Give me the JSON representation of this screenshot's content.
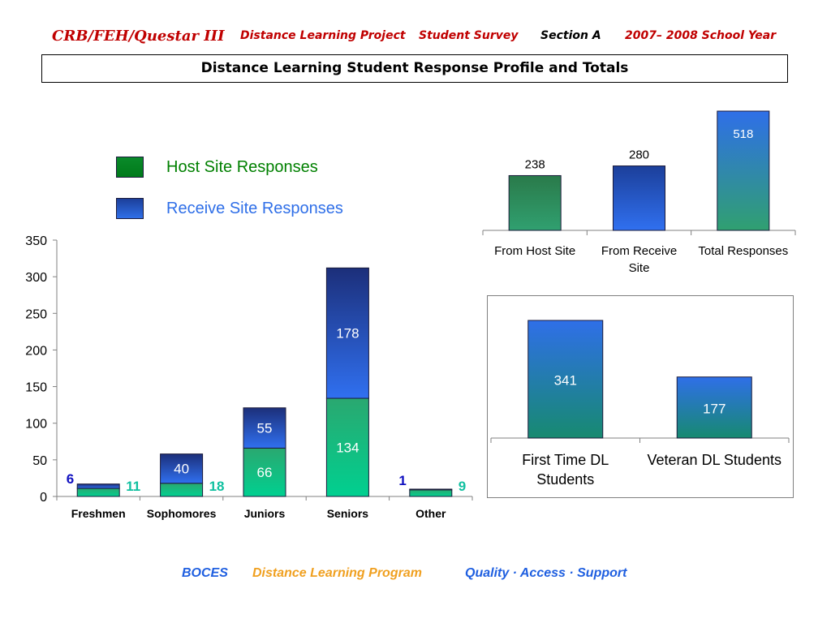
{
  "header": {
    "title": "CRB/FEH/Questar III",
    "project": "Distance Learning Project",
    "survey": "Student Survey",
    "section": "Section A",
    "year": "2007– 2008 School Year"
  },
  "box_title": "Distance Learning Student Response Profile and Totals",
  "legend": {
    "host": {
      "label": "Host Site Responses",
      "color": "#008000"
    },
    "receive": {
      "label": "Receive Site Responses",
      "color": "#2f6fe8"
    }
  },
  "footer": {
    "boces": "BOCES",
    "program": "Distance Learning Program",
    "motto": "Quality · Access · Support"
  },
  "chart_data": [
    {
      "type": "bar",
      "stacked": true,
      "categories": [
        "Freshmen",
        "Sophomores",
        "Juniors",
        "Seniors",
        "Other"
      ],
      "series": [
        {
          "name": "Host Site Responses",
          "values": [
            11,
            18,
            66,
            134,
            9
          ]
        },
        {
          "name": "Receive Site Responses",
          "values": [
            6,
            40,
            55,
            178,
            1
          ]
        }
      ],
      "ylim": [
        0,
        350
      ],
      "yticks": [
        0,
        50,
        100,
        150,
        200,
        250,
        300,
        350
      ],
      "grid": false
    },
    {
      "type": "bar",
      "categories": [
        "From Host Site",
        "From Receive Site",
        "Total Responses"
      ],
      "values": [
        238,
        280,
        518
      ],
      "ylim": [
        0,
        518
      ],
      "grid": false
    },
    {
      "type": "bar",
      "categories": [
        "First Time DL Students",
        "Veteran DL Students"
      ],
      "values": [
        341,
        177
      ],
      "ylim": [
        0,
        341
      ],
      "grid": false
    }
  ]
}
